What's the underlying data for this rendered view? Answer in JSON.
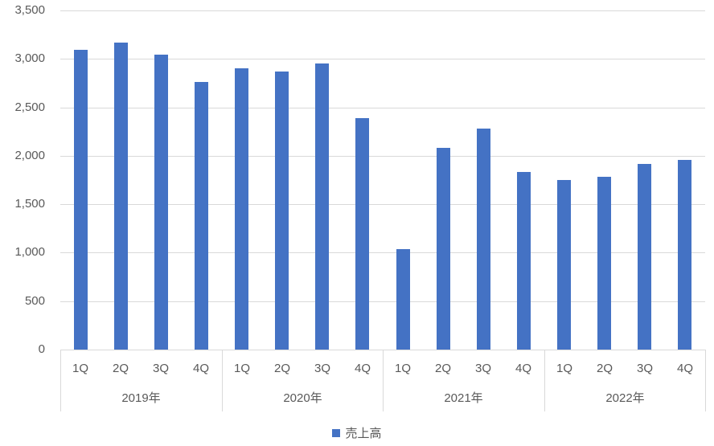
{
  "chart_data": {
    "type": "bar",
    "title": "",
    "legend_position": "bottom",
    "series": [
      {
        "name": "売上高",
        "color": "#4472C4",
        "values": [
          3090,
          3170,
          3040,
          2760,
          2900,
          2870,
          2950,
          2390,
          1040,
          2080,
          2280,
          1830,
          1750,
          1780,
          1920,
          1960
        ]
      }
    ],
    "categories": [
      "1Q",
      "2Q",
      "3Q",
      "4Q",
      "1Q",
      "2Q",
      "3Q",
      "4Q",
      "1Q",
      "2Q",
      "3Q",
      "4Q",
      "1Q",
      "2Q",
      "3Q",
      "4Q"
    ],
    "groups": [
      {
        "label": "2019年",
        "quarters": [
          "1Q",
          "2Q",
          "3Q",
          "4Q"
        ]
      },
      {
        "label": "2020年",
        "quarters": [
          "1Q",
          "2Q",
          "3Q",
          "4Q"
        ]
      },
      {
        "label": "2021年",
        "quarters": [
          "1Q",
          "2Q",
          "3Q",
          "4Q"
        ]
      },
      {
        "label": "2022年",
        "quarters": [
          "1Q",
          "2Q",
          "3Q",
          "4Q"
        ]
      }
    ],
    "xlabel": "",
    "ylabel": "",
    "ylim": [
      0,
      3500
    ],
    "ytick_interval": 500,
    "ytick_labels": [
      "0",
      "500",
      "1,000",
      "1,500",
      "2,000",
      "2,500",
      "3,000",
      "3,500"
    ],
    "grid": true,
    "colors": {
      "bar": "#4472C4",
      "gridline": "#D9D9D9",
      "axis_text": "#595959"
    }
  }
}
